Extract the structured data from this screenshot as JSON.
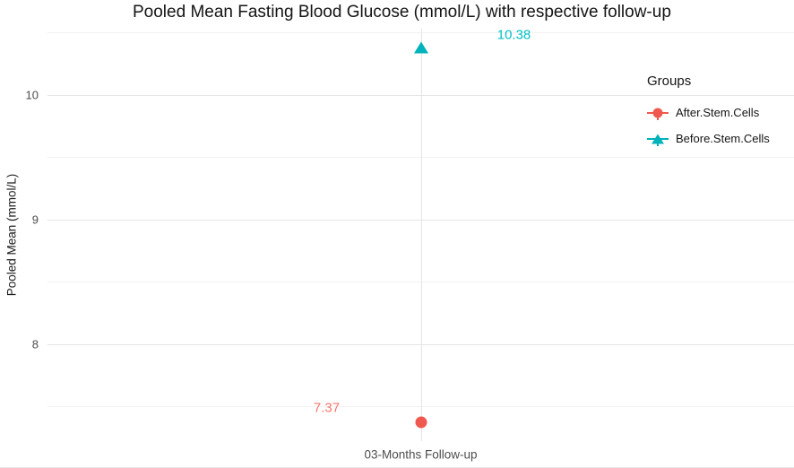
{
  "colors": {
    "after_series": "#F0594F",
    "after_label": "#F8766D",
    "before_series": "#00B2B9",
    "before_label": "#00BFC4",
    "grid_major": "#E4E4E4",
    "grid_minor": "#F2F2F2",
    "axis_text": "#4D4D4D",
    "title_text": "#141414"
  },
  "chart_data": {
    "type": "scatter",
    "title": "Pooled Mean Fasting Blood Glucose (mmol/L) with respective follow-up",
    "xlabel": "",
    "ylabel": "Pooled Mean (mmol/L)",
    "categories": [
      "03-Months Follow-up"
    ],
    "series": [
      {
        "name": "After.Stem.Cells",
        "marker": "circle",
        "color": "#F0594F",
        "label_color": "#F8766D",
        "values": [
          7.37
        ],
        "labels": [
          "7.37"
        ],
        "label_dx": -105,
        "label_dy": -16
      },
      {
        "name": "Before.Stem.Cells",
        "marker": "triangle",
        "color": "#00B2B9",
        "label_color": "#00BFC4",
        "values": [
          10.38
        ],
        "labels": [
          "10.38"
        ],
        "label_dx": 104,
        "label_dy": -14
      }
    ],
    "ylim": [
      7.22,
      10.53
    ],
    "yticks": [
      8,
      9,
      10
    ],
    "yticks_minor": [
      7.5,
      8.5,
      9.5,
      10.5
    ],
    "grid": true,
    "legend": {
      "title": "Groups",
      "position": "top-right-inside"
    }
  }
}
